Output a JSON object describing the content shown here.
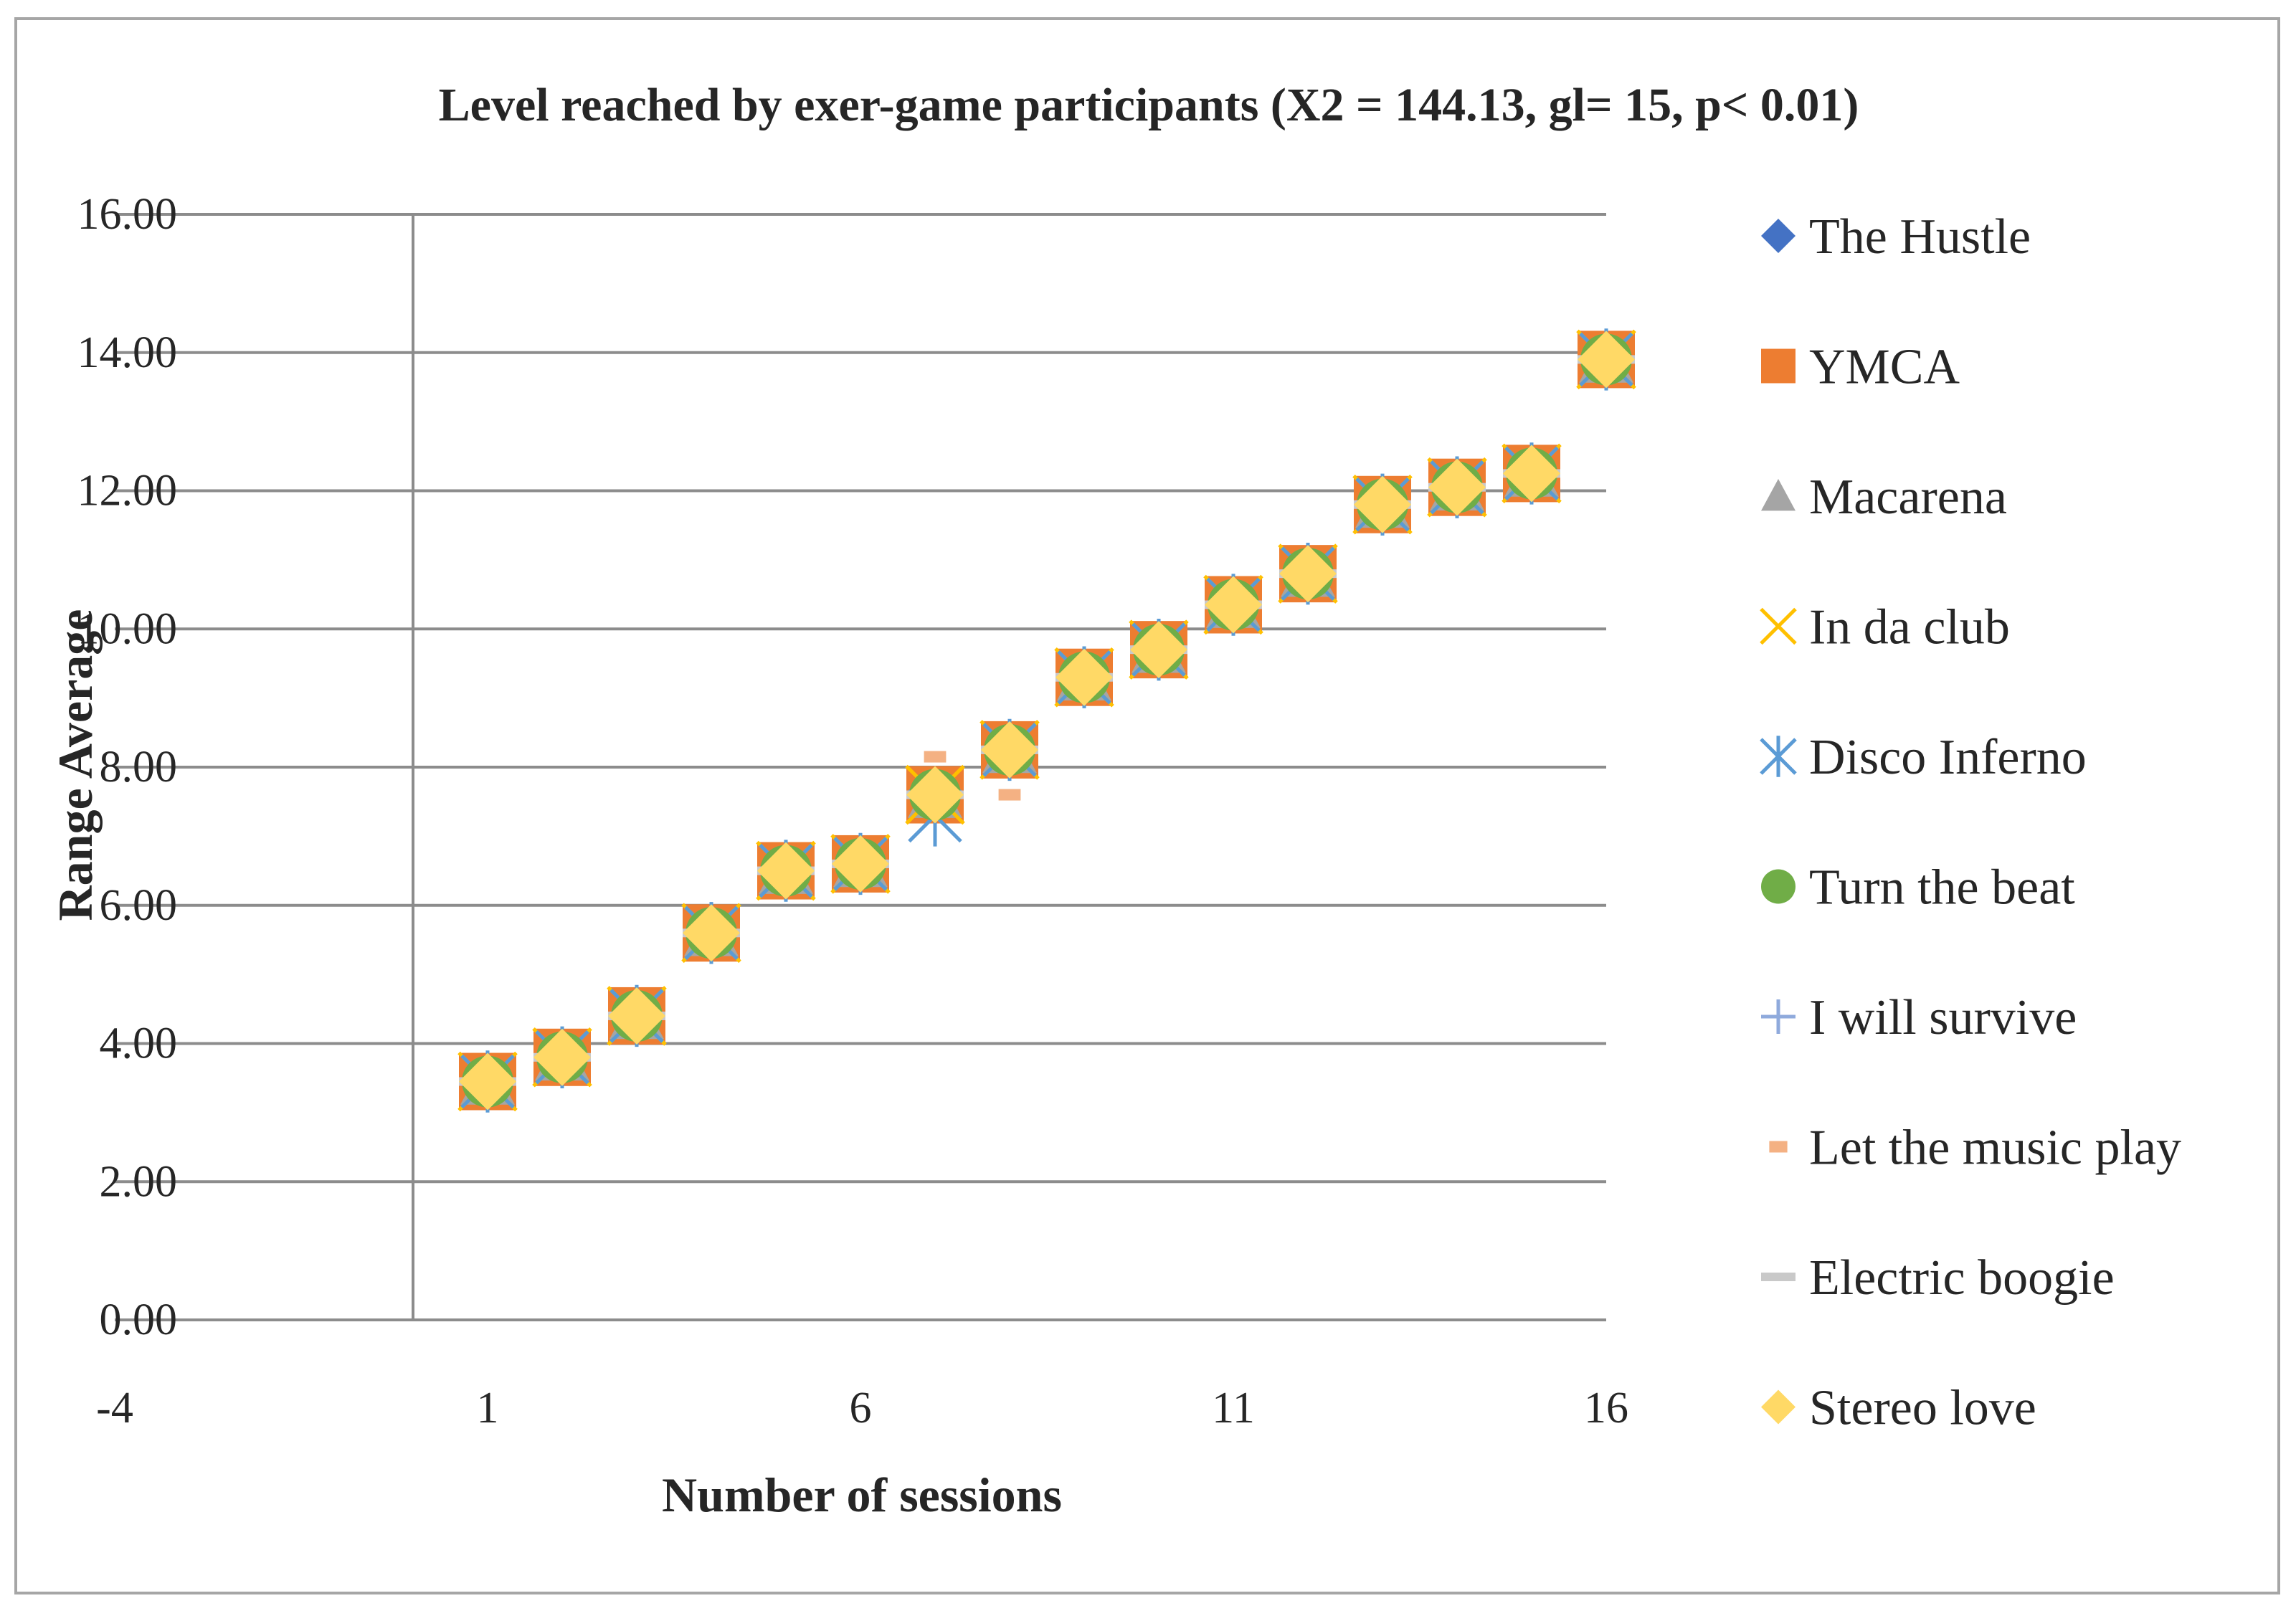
{
  "chart_data": {
    "type": "scatter",
    "title": "Level reached by exer-game participants (X2 = 144.13, gl= 15, p< 0.01)",
    "xlabel": "Number of sessions",
    "ylabel": "Range Average",
    "xlim": [
      -4,
      16
    ],
    "ylim": [
      0,
      16
    ],
    "x_ticks": [
      "-4",
      "1",
      "6",
      "11",
      "16"
    ],
    "y_ticks": [
      "0.00",
      "2.00",
      "4.00",
      "6.00",
      "8.00",
      "10.00",
      "12.00",
      "14.00",
      "16.00"
    ],
    "grid": true,
    "legend_position": "right",
    "x": [
      1,
      2,
      3,
      4,
      5,
      6,
      7,
      8,
      9,
      10,
      11,
      12,
      13,
      14,
      15,
      16
    ],
    "series": [
      {
        "name": "The Hustle",
        "marker": "diamond",
        "color": "#4472C4",
        "values": [
          3.45,
          3.8,
          4.4,
          5.6,
          6.5,
          6.6,
          7.6,
          8.25,
          9.3,
          9.7,
          10.35,
          10.8,
          11.8,
          12.05,
          12.25,
          13.9
        ]
      },
      {
        "name": "YMCA",
        "marker": "square",
        "color": "#ED7D31",
        "values": [
          3.45,
          3.8,
          4.4,
          5.6,
          6.5,
          6.6,
          7.6,
          8.25,
          9.3,
          9.7,
          10.35,
          10.8,
          11.8,
          12.05,
          12.25,
          13.9
        ]
      },
      {
        "name": "Macarena",
        "marker": "triangle",
        "color": "#A5A5A5",
        "values": [
          3.45,
          3.8,
          4.4,
          5.6,
          6.5,
          6.6,
          7.6,
          8.25,
          9.3,
          9.7,
          10.35,
          10.8,
          11.8,
          12.05,
          12.25,
          13.9
        ]
      },
      {
        "name": "In da club",
        "marker": "x",
        "color": "#FFC000",
        "values": [
          3.45,
          3.8,
          4.4,
          5.6,
          6.5,
          6.6,
          7.6,
          8.25,
          9.3,
          9.7,
          10.35,
          10.8,
          11.8,
          12.05,
          12.25,
          13.9
        ]
      },
      {
        "name": "Disco Inferno",
        "marker": "star",
        "color": "#5B9BD5",
        "values": [
          3.45,
          3.8,
          4.4,
          5.6,
          6.5,
          6.6,
          7.3,
          8.25,
          9.3,
          9.7,
          10.35,
          10.8,
          11.8,
          12.05,
          12.25,
          13.9
        ]
      },
      {
        "name": "Turn the beat",
        "marker": "circle",
        "color": "#70AD47",
        "values": [
          3.45,
          3.8,
          4.4,
          5.6,
          6.5,
          6.6,
          7.6,
          8.25,
          9.3,
          9.7,
          10.35,
          10.8,
          11.8,
          12.05,
          12.25,
          13.9
        ]
      },
      {
        "name": "I will survive",
        "marker": "plus",
        "color": "#8FAADC",
        "values": [
          3.45,
          3.8,
          4.4,
          5.6,
          6.5,
          6.6,
          7.6,
          8.25,
          9.3,
          9.7,
          10.35,
          10.8,
          11.8,
          12.05,
          12.25,
          13.9
        ]
      },
      {
        "name": "Let the music play",
        "marker": "short-dash",
        "color": "#F4B183",
        "values": [
          3.45,
          3.8,
          4.4,
          5.6,
          6.5,
          6.6,
          8.15,
          7.6,
          9.3,
          9.7,
          10.35,
          10.8,
          11.8,
          12.05,
          12.25,
          13.9
        ]
      },
      {
        "name": "Electric boogie",
        "marker": "long-dash",
        "color": "#C9C9C9",
        "values": [
          3.45,
          3.8,
          4.4,
          5.6,
          6.5,
          6.6,
          7.6,
          8.25,
          9.3,
          9.7,
          10.35,
          10.8,
          11.8,
          12.05,
          12.25,
          13.9
        ]
      },
      {
        "name": "Stereo love",
        "marker": "diamond",
        "color": "#FFD966",
        "values": [
          3.45,
          3.8,
          4.4,
          5.6,
          6.5,
          6.6,
          7.6,
          8.25,
          9.3,
          9.7,
          10.35,
          10.8,
          11.8,
          12.05,
          12.25,
          13.9
        ]
      }
    ]
  }
}
